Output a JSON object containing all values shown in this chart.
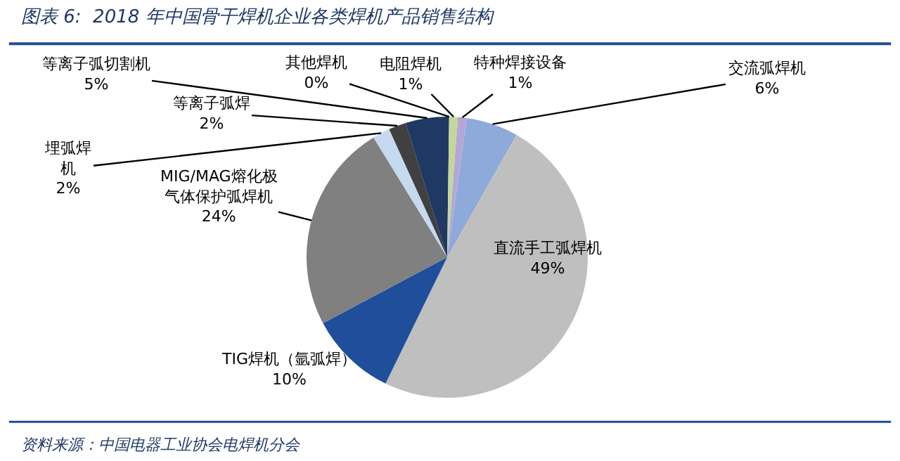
{
  "chart_data": {
    "type": "pie",
    "title": "图表 6:  2018 年中国骨干焊机企业各类焊机产品销售结构",
    "categories": [
      "交流弧焊机",
      "直流手工弧焊机",
      "TIG焊机（氩弧焊）",
      "MIG/MAG熔化极气体保护弧焊机",
      "埋弧焊机",
      "等离子弧焊",
      "等离子弧切割机",
      "其他焊机",
      "电阻焊机",
      "特种焊接设备"
    ],
    "values": [
      6,
      49,
      10,
      24,
      2,
      2,
      5,
      0,
      1,
      1
    ],
    "colors": [
      "#8eaadb",
      "#bfbfbf",
      "#1f4e9a",
      "#808080",
      "#c5d9f1",
      "#404040",
      "#1f3864",
      "#595959",
      "#c4d79b",
      "#b4a7d6"
    ],
    "value_labels": [
      "6%",
      "49%",
      "10%",
      "24%",
      "2%",
      "2%",
      "5%",
      "0%",
      "1%",
      "1%"
    ],
    "legend": false,
    "annotations": [
      "资料来源：中国电器工业协会电焊机分会"
    ]
  }
}
